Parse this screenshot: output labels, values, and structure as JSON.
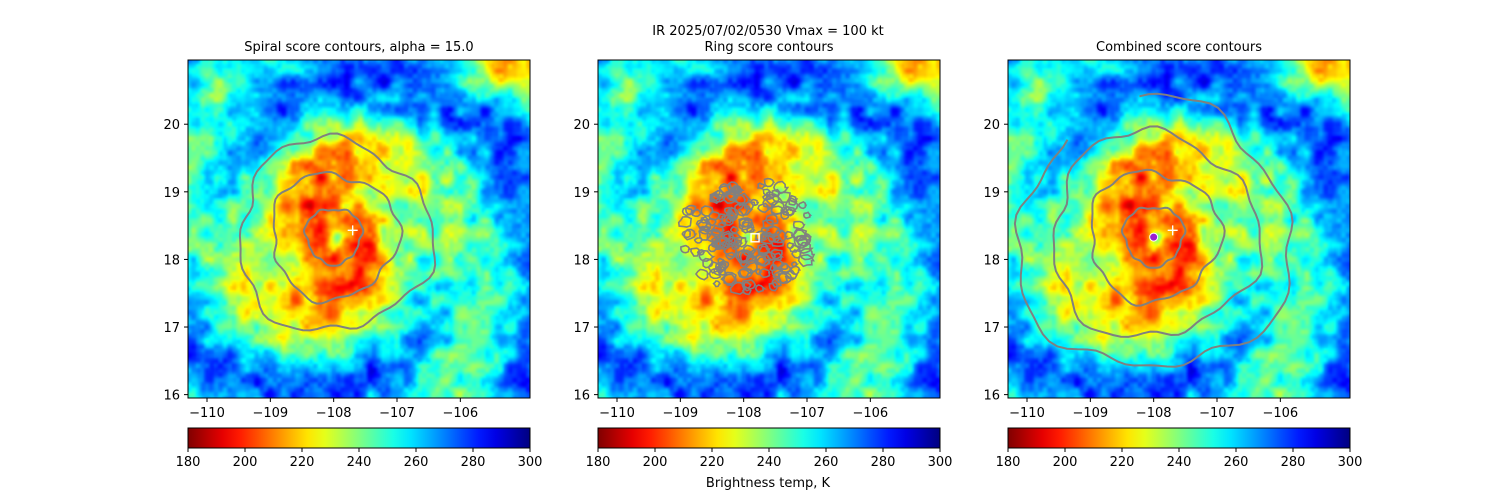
{
  "figure": {
    "suptitle_line1": "IR  2025/07/02/0530    Vmax = 100 kt",
    "colorbar_label": "Brightness temp, K"
  },
  "chart_data": [
    {
      "type": "heatmap",
      "title": "Spiral score contours, alpha = 15.0",
      "xlim": [
        -110.3,
        -104.9
      ],
      "ylim": [
        15.95,
        20.95
      ],
      "x_ticks": [
        -110,
        -109,
        -108,
        -107,
        -106
      ],
      "x_tick_labels": [
        "−110",
        "−109",
        "−108",
        "−107",
        "−106"
      ],
      "y_ticks": [
        16,
        17,
        18,
        19,
        20
      ],
      "y_tick_labels": [
        "16",
        "17",
        "18",
        "19",
        "20"
      ],
      "colorscale": "jet_r",
      "clim": [
        180,
        300
      ],
      "colorbar_ticks": [
        "180",
        "200",
        "220",
        "240",
        "260",
        "280",
        "300"
      ],
      "eye_center": [
        -108.0,
        18.35
      ],
      "contour_levels_deg": [
        0.42,
        0.95,
        1.45
      ],
      "contour_color": "#808080",
      "markers": [
        {
          "symbol": "plus",
          "color": "#ffffff",
          "x": -107.7,
          "y": 18.43
        }
      ]
    },
    {
      "type": "heatmap",
      "title": "Ring score contours",
      "xlim": [
        -110.3,
        -104.9
      ],
      "ylim": [
        15.95,
        20.95
      ],
      "x_ticks": [
        -110,
        -109,
        -108,
        -107,
        -106
      ],
      "x_tick_labels": [
        "−110",
        "−109",
        "−108",
        "−107",
        "−106"
      ],
      "y_ticks": [
        16,
        17,
        18,
        19,
        20
      ],
      "y_tick_labels": [
        "16",
        "17",
        "18",
        "19",
        "20"
      ],
      "colorscale": "jet_r",
      "clim": [
        180,
        300
      ],
      "colorbar_ticks": [
        "180",
        "200",
        "220",
        "240",
        "260",
        "280",
        "300"
      ],
      "eye_center": [
        -108.0,
        18.35
      ],
      "contour_color": "#808080",
      "contour_region_radius_deg": 0.95,
      "markers": [
        {
          "symbol": "square",
          "color": "#ffffff",
          "x": -107.82,
          "y": 18.32
        }
      ]
    },
    {
      "type": "heatmap",
      "title": "Combined score contours",
      "xlim": [
        -110.3,
        -104.9
      ],
      "ylim": [
        15.95,
        20.95
      ],
      "x_ticks": [
        -110,
        -109,
        -108,
        -107,
        -106
      ],
      "x_tick_labels": [
        "−110",
        "−109",
        "−108",
        "−107",
        "−106"
      ],
      "y_ticks": [
        16,
        17,
        18,
        19,
        20
      ],
      "y_tick_labels": [
        "16",
        "17",
        "18",
        "19",
        "20"
      ],
      "colorscale": "jet_r",
      "clim": [
        180,
        300
      ],
      "colorbar_ticks": [
        "180",
        "200",
        "220",
        "240",
        "260",
        "280",
        "300"
      ],
      "eye_center": [
        -108.0,
        18.35
      ],
      "contour_levels_deg": [
        0.45,
        0.98,
        1.55,
        2.05
      ],
      "contour_color": "#808080",
      "markers": [
        {
          "symbol": "plus",
          "color": "#ffffff",
          "x": -107.7,
          "y": 18.43
        },
        {
          "symbol": "circle",
          "color": "#9a1fd0",
          "x": -108.0,
          "y": 18.33
        }
      ]
    }
  ]
}
